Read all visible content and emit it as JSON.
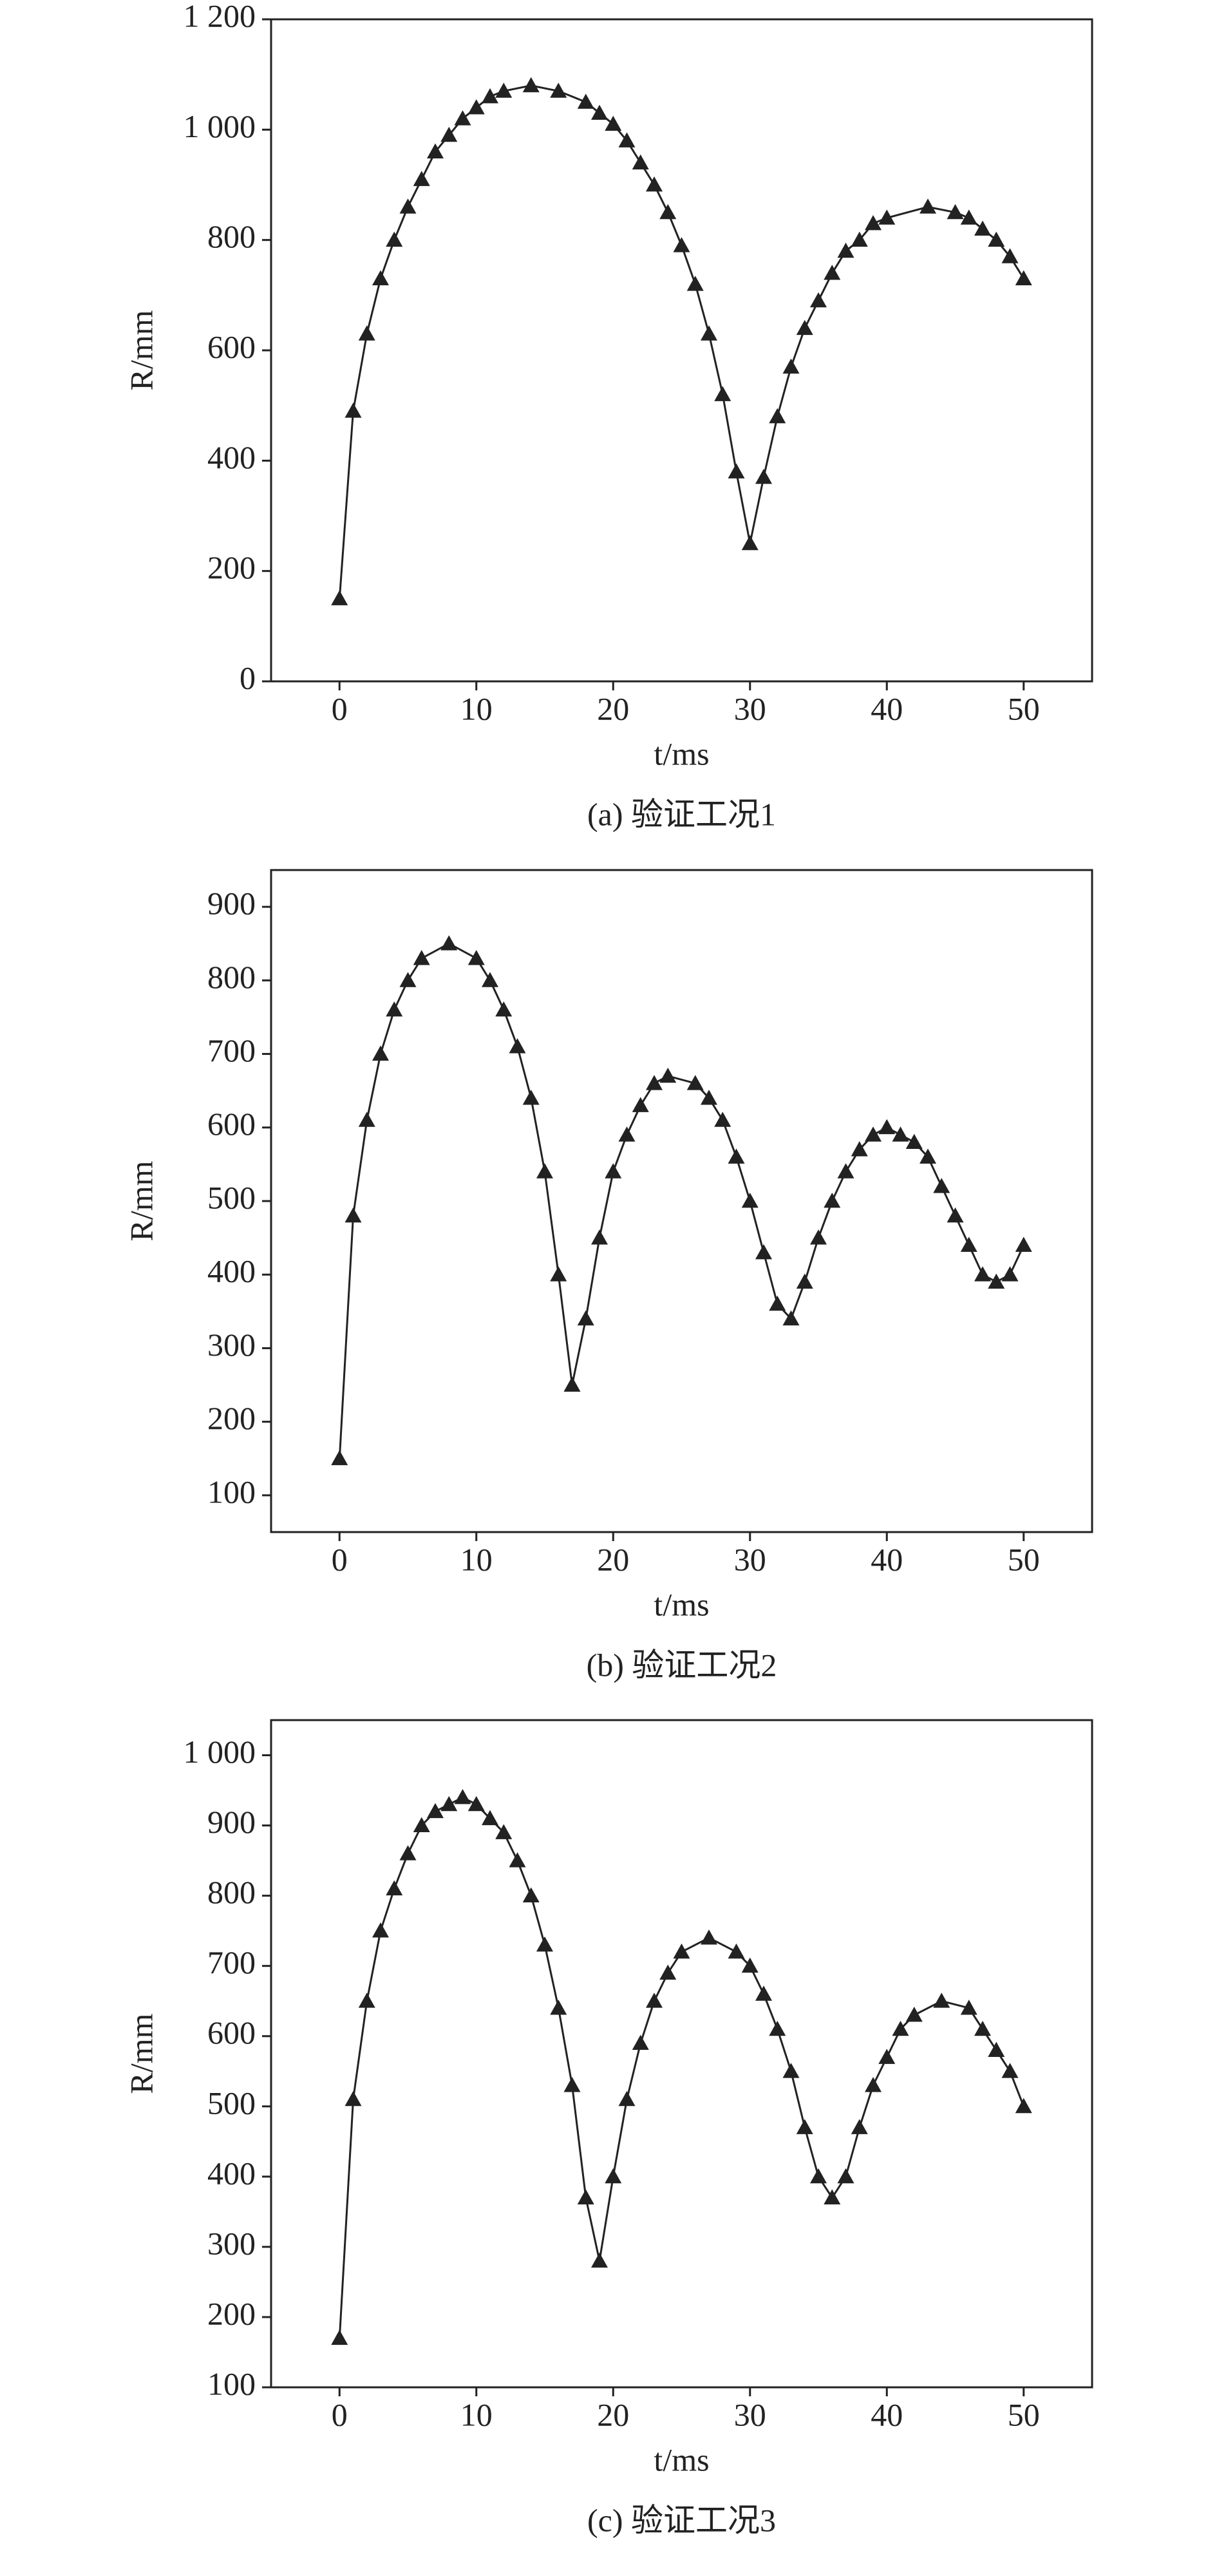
{
  "chart_data": [
    {
      "type": "line",
      "caption": "(a) 验证工况1",
      "x_label": "t/ms",
      "y_label": "R/mm",
      "color": "#222222",
      "xlim": [
        -5,
        55
      ],
      "xticks": [
        0,
        10,
        20,
        30,
        40,
        50
      ],
      "ylim": [
        0,
        1200
      ],
      "yticks": [
        0,
        200,
        400,
        600,
        800,
        {
          "value": 1000,
          "label": "1 000"
        },
        {
          "value": 1200,
          "label": "1 200"
        }
      ],
      "x": [
        0,
        1,
        2,
        3,
        4,
        5,
        6,
        7,
        8,
        9,
        10,
        11,
        12,
        14,
        16,
        18,
        19,
        20,
        21,
        22,
        23,
        24,
        25,
        26,
        27,
        28,
        29,
        30,
        31,
        32,
        33,
        34,
        35,
        36,
        37,
        38,
        39,
        40,
        43,
        45,
        46,
        47,
        48,
        49,
        50
      ],
      "values": [
        150,
        490,
        630,
        730,
        800,
        860,
        910,
        960,
        990,
        1020,
        1040,
        1060,
        1070,
        1080,
        1070,
        1050,
        1030,
        1010,
        980,
        940,
        900,
        850,
        790,
        720,
        630,
        520,
        380,
        250,
        370,
        480,
        570,
        640,
        690,
        740,
        780,
        800,
        830,
        840,
        860,
        850,
        840,
        820,
        800,
        770,
        730
      ]
    },
    {
      "type": "line",
      "caption": "(b) 验证工况2",
      "x_label": "t/ms",
      "y_label": "R/mm",
      "color": "#222222",
      "xlim": [
        -5,
        55
      ],
      "xticks": [
        0,
        10,
        20,
        30,
        40,
        50
      ],
      "ylim": [
        50,
        950
      ],
      "yticks": [
        100,
        200,
        300,
        400,
        500,
        600,
        700,
        800,
        900
      ],
      "x": [
        0,
        1,
        2,
        3,
        4,
        5,
        6,
        8,
        10,
        11,
        12,
        13,
        14,
        15,
        16,
        17,
        18,
        19,
        20,
        21,
        22,
        23,
        24,
        26,
        27,
        28,
        29,
        30,
        31,
        32,
        33,
        34,
        35,
        36,
        37,
        38,
        39,
        40,
        41,
        42,
        43,
        44,
        45,
        46,
        47,
        48,
        49,
        50
      ],
      "values": [
        150,
        480,
        610,
        700,
        760,
        800,
        830,
        850,
        830,
        800,
        760,
        710,
        640,
        540,
        400,
        250,
        340,
        450,
        540,
        590,
        630,
        660,
        670,
        660,
        640,
        610,
        560,
        500,
        430,
        360,
        340,
        390,
        450,
        500,
        540,
        570,
        590,
        600,
        590,
        580,
        560,
        520,
        480,
        440,
        400,
        390,
        400,
        440
      ]
    },
    {
      "type": "line",
      "caption": "(c) 验证工况3",
      "x_label": "t/ms",
      "y_label": "R/mm",
      "color": "#222222",
      "xlim": [
        -5,
        55
      ],
      "xticks": [
        0,
        10,
        20,
        30,
        40,
        50
      ],
      "ylim": [
        100,
        1050
      ],
      "yticks": [
        100,
        200,
        300,
        400,
        500,
        600,
        700,
        800,
        900,
        {
          "value": 1000,
          "label": "1 000"
        }
      ],
      "x": [
        0,
        1,
        2,
        3,
        4,
        5,
        6,
        7,
        8,
        9,
        10,
        11,
        12,
        13,
        14,
        15,
        16,
        17,
        18,
        19,
        20,
        21,
        22,
        23,
        24,
        25,
        27,
        29,
        30,
        31,
        32,
        33,
        34,
        35,
        36,
        37,
        38,
        39,
        40,
        41,
        42,
        44,
        46,
        47,
        48,
        49,
        50
      ],
      "values": [
        170,
        510,
        650,
        750,
        810,
        860,
        900,
        920,
        930,
        940,
        930,
        910,
        890,
        850,
        800,
        730,
        640,
        530,
        370,
        280,
        400,
        510,
        590,
        650,
        690,
        720,
        740,
        720,
        700,
        660,
        610,
        550,
        470,
        400,
        370,
        400,
        470,
        530,
        570,
        610,
        630,
        650,
        640,
        610,
        580,
        550,
        500
      ]
    }
  ]
}
